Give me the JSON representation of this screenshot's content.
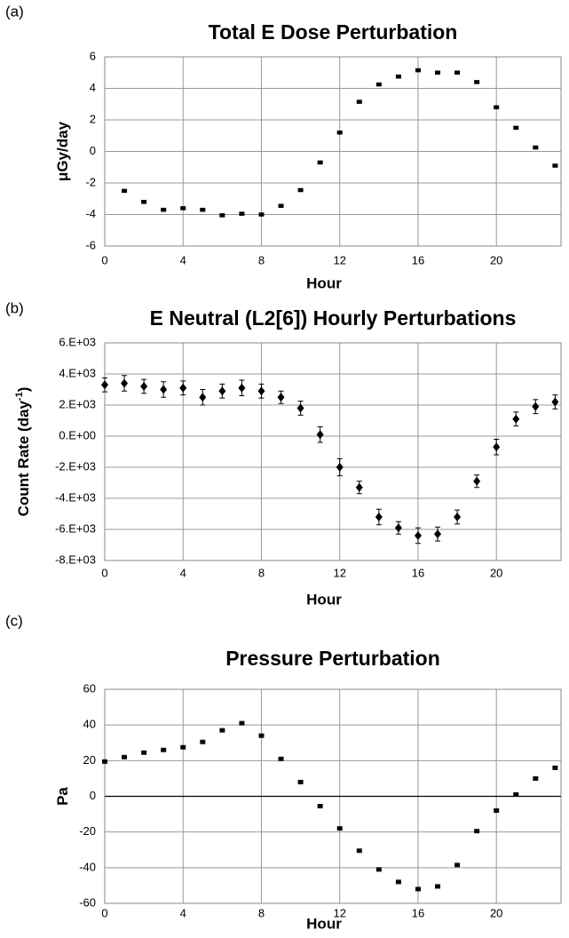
{
  "chart_data": [
    {
      "type": "scatter",
      "panel": "(a)",
      "title": "Total E Dose Perturbation",
      "x_label": "Hour",
      "y_label": "μGy/day",
      "marker": "dash",
      "color": "#000000",
      "grid": true,
      "x": [
        1,
        2,
        3,
        4,
        5,
        6,
        7,
        8,
        9,
        10,
        11,
        12,
        13,
        14,
        15,
        16,
        17,
        18,
        19,
        20,
        21,
        22,
        23
      ],
      "values": [
        -2.5,
        -3.2,
        -3.7,
        -3.6,
        -3.7,
        -4.05,
        -3.95,
        -4.0,
        -3.45,
        -2.45,
        -0.7,
        1.2,
        3.15,
        4.25,
        4.75,
        5.15,
        5.0,
        5.0,
        4.4,
        2.8,
        1.5,
        0.25,
        -0.9
      ],
      "errors": [
        0.1,
        0.1,
        0.1,
        0.1,
        0.1,
        0.1,
        0.1,
        0.1,
        0.1,
        0.1,
        0.1,
        0.1,
        0.1,
        0.1,
        0.1,
        0.1,
        0.1,
        0.1,
        0.1,
        0.1,
        0.1,
        0.1,
        0.1
      ],
      "xlim": [
        0,
        23.3
      ],
      "xticks": [
        0,
        4,
        8,
        12,
        16,
        20
      ],
      "ylim": [
        -6,
        6
      ],
      "yticks": [
        -6,
        -4,
        -2,
        0,
        2,
        4,
        6
      ]
    },
    {
      "type": "scatter",
      "panel": "(b)",
      "title": "E Neutral (L2[6]) Hourly Perturbations",
      "x_label": "Hour",
      "y_label": "Count Rate (day",
      "y_label_sup": "-1",
      "y_label_end": ")",
      "marker": "diamond",
      "color": "#000000",
      "grid": true,
      "x": [
        0,
        1,
        2,
        3,
        4,
        5,
        6,
        7,
        8,
        9,
        10,
        11,
        12,
        13,
        14,
        15,
        16,
        17,
        18,
        19,
        20,
        21,
        22,
        23
      ],
      "values": [
        3300,
        3400,
        3200,
        3000,
        3100,
        2500,
        2900,
        3100,
        2900,
        2500,
        1800,
        100,
        -2000,
        -3300,
        -5200,
        -5900,
        -6400,
        -6300,
        -5200,
        -2900,
        -700,
        1100,
        1900,
        2200
      ],
      "errors": [
        450,
        500,
        450,
        500,
        450,
        500,
        450,
        500,
        450,
        400,
        450,
        500,
        550,
        400,
        500,
        400,
        500,
        450,
        450,
        400,
        500,
        450,
        450,
        450
      ],
      "xlim": [
        0,
        23.3
      ],
      "xticks": [
        0,
        4,
        8,
        12,
        16,
        20
      ],
      "ylim": [
        -8000,
        6000
      ],
      "yticks": [
        {
          "value": -8000,
          "label": "-8.E+03"
        },
        {
          "value": -6000,
          "label": "-6.E+03"
        },
        {
          "value": -4000,
          "label": "-4.E+03"
        },
        {
          "value": -2000,
          "label": "-2.E+03"
        },
        {
          "value": 0,
          "label": "0.E+00"
        },
        {
          "value": 2000,
          "label": "2.E+03"
        },
        {
          "value": 4000,
          "label": "4.E+03"
        },
        {
          "value": 6000,
          "label": "6.E+03"
        }
      ]
    },
    {
      "type": "scatter",
      "panel": "(c)",
      "title": "Pressure Perturbation",
      "x_label": "Hour",
      "y_label": "Pa",
      "marker": "dash",
      "color": "#000000",
      "grid": true,
      "zero_line": true,
      "x": [
        0,
        1,
        2,
        3,
        4,
        5,
        6,
        7,
        8,
        9,
        10,
        11,
        12,
        13,
        14,
        15,
        16,
        17,
        18,
        19,
        20,
        21,
        22,
        23
      ],
      "values": [
        19.5,
        22,
        24.5,
        26,
        27.5,
        30.5,
        37,
        41,
        34,
        21,
        8,
        -5.5,
        -18,
        -30.5,
        -41,
        -48,
        -52,
        -50.5,
        -38.5,
        -19.5,
        -8,
        1,
        10,
        16
      ],
      "errors": [
        1,
        1,
        1,
        1,
        1,
        1,
        1,
        1,
        1,
        1,
        1,
        1,
        1,
        1,
        1,
        1,
        1,
        1,
        1,
        1,
        1,
        1,
        1,
        1
      ],
      "xlim": [
        0,
        23.3
      ],
      "xticks": [
        0,
        4,
        8,
        12,
        16,
        20
      ],
      "ylim": [
        -60,
        60
      ],
      "yticks": [
        -60,
        -40,
        -20,
        0,
        20,
        40,
        60
      ]
    }
  ]
}
